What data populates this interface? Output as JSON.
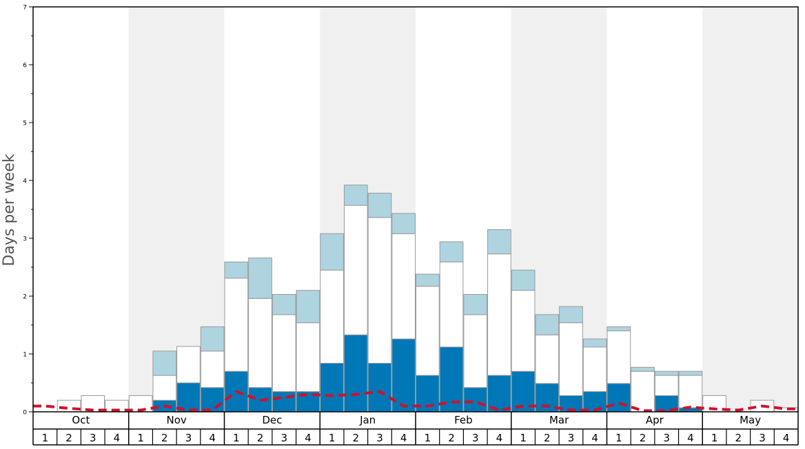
{
  "chart_data": {
    "type": "bar",
    "ylabel": "Days per week",
    "ylim": [
      0,
      7
    ],
    "yticks": [
      0,
      1,
      2,
      3,
      4,
      5,
      6,
      7
    ],
    "months": [
      "Oct",
      "Nov",
      "Dec",
      "Jan",
      "Feb",
      "Mar",
      "Apr",
      "May"
    ],
    "weeks_per_month": [
      "1",
      "2",
      "3",
      "4"
    ],
    "month_band_colors": [
      "#ffffff",
      "#f0f0f0"
    ],
    "series": [
      {
        "color": "#0077b6",
        "values": [
          0,
          0,
          0,
          0,
          0,
          0.2,
          0.5,
          0.42,
          0.7,
          0.42,
          0.35,
          0.35,
          0.84,
          1.33,
          0.84,
          1.26,
          0.63,
          1.12,
          0.42,
          0.63,
          0.7,
          0.49,
          0.28,
          0.35,
          0.49,
          0,
          0.28,
          0.07,
          0,
          0,
          0,
          0
        ]
      },
      {
        "color": "#ffffff",
        "values": [
          0,
          0.2,
          0.28,
          0.2,
          0.28,
          0.43,
          0.63,
          0.63,
          1.61,
          1.54,
          1.33,
          1.19,
          1.61,
          2.24,
          2.52,
          1.82,
          1.54,
          1.47,
          1.26,
          2.1,
          1.4,
          0.84,
          1.26,
          0.77,
          0.91,
          0.7,
          0.35,
          0.56,
          0.28,
          0,
          0.2,
          0.07
        ]
      },
      {
        "color": "#aed4e0",
        "values": [
          0,
          0,
          0,
          0,
          0,
          0.42,
          0,
          0.42,
          0.28,
          0.7,
          0.35,
          0.56,
          0.63,
          0.35,
          0.42,
          0.35,
          0.21,
          0.35,
          0.35,
          0.42,
          0.35,
          0.35,
          0.28,
          0.14,
          0.07,
          0.07,
          0.07,
          0.07,
          0,
          0,
          0,
          0
        ]
      }
    ],
    "trend_line": {
      "color": "#d0112b",
      "style": "dashed",
      "values": [
        0.1,
        0.06,
        0.03,
        0.03,
        0.03,
        0.1,
        0.03,
        0.03,
        0.35,
        0.2,
        0.25,
        0.3,
        0.28,
        0.3,
        0.35,
        0.1,
        0.1,
        0.17,
        0.17,
        0.03,
        0.1,
        0.1,
        0.03,
        0.03,
        0.15,
        0.02,
        0.02,
        0.08,
        0.05,
        0.03,
        0.1,
        0.05
      ]
    }
  }
}
